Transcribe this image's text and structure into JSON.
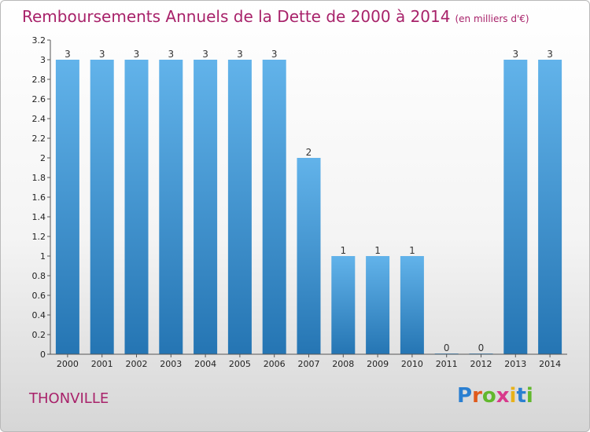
{
  "title": "Remboursements Annuels de la Dette de 2000 à 2014",
  "unit": "(en milliers d'€)",
  "commune": "THONVILLE",
  "logo": {
    "letters": [
      "P",
      "r",
      "o",
      "x",
      "i",
      "t",
      "i"
    ],
    "colors": [
      "#2a7fd1",
      "#e05a1c",
      "#62b82d",
      "#d83a8b",
      "#e8b21a",
      "#2a7fd1",
      "#62b82d"
    ]
  },
  "colors": {
    "bar_top": "#62b3ea",
    "bar_bottom": "#2575b3",
    "title": "#a8226a"
  },
  "chart_data": {
    "type": "bar",
    "title": "Remboursements Annuels de la Dette de 2000 à 2014",
    "categories": [
      "2000",
      "2001",
      "2002",
      "2003",
      "2004",
      "2005",
      "2006",
      "2007",
      "2008",
      "2009",
      "2010",
      "2011",
      "2012",
      "2013",
      "2014"
    ],
    "values": [
      3,
      3,
      3,
      3,
      3,
      3,
      3,
      2,
      1,
      1,
      1,
      0,
      0,
      3,
      3
    ],
    "data_labels": [
      "3",
      "3",
      "3",
      "3",
      "3",
      "3",
      "3",
      "2",
      "1",
      "1",
      "1",
      "0",
      "0",
      "3",
      "3"
    ],
    "ylim": [
      0,
      3.2
    ],
    "yticks": [
      0,
      0.2,
      0.4,
      0.6,
      0.8,
      1,
      1.2,
      1.4,
      1.6,
      1.8,
      2,
      2.2,
      2.4,
      2.6,
      2.8,
      3,
      3.2
    ],
    "ytick_labels": [
      "0",
      "0.2",
      "0.4",
      "0.6",
      "0.8",
      "1",
      "1.2",
      "1.4",
      "1.6",
      "1.8",
      "2",
      "2.2",
      "2.4",
      "2.6",
      "2.8",
      "3",
      "3.2"
    ],
    "grid": false,
    "legend": "none"
  }
}
